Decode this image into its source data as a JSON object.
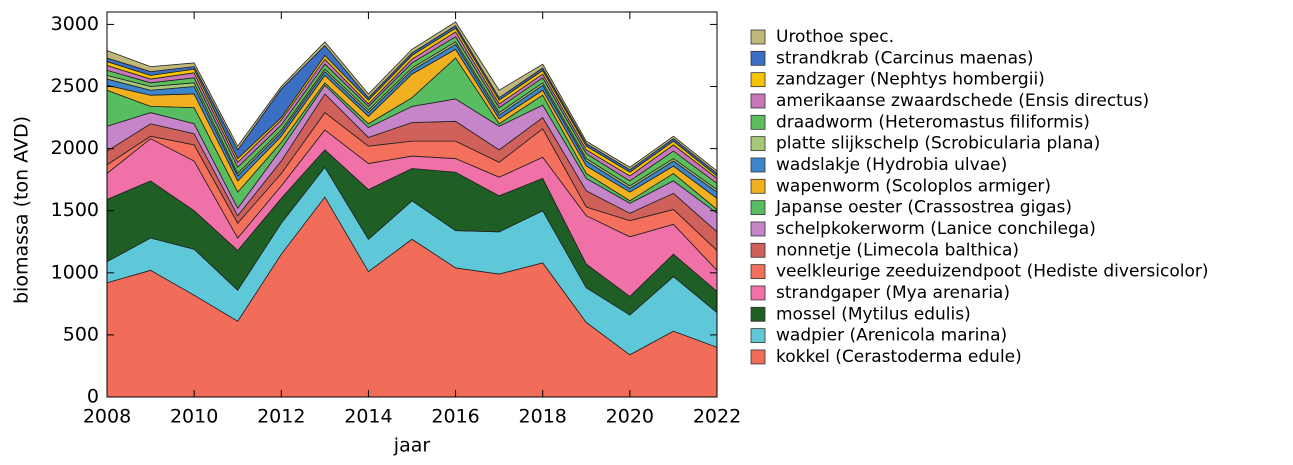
{
  "chart_data": {
    "type": "area",
    "stacked": true,
    "x_label": "jaar",
    "y_label": "biomassa (ton AVD)",
    "x": [
      2008,
      2009,
      2010,
      2011,
      2012,
      2013,
      2014,
      2015,
      2016,
      2017,
      2018,
      2019,
      2020,
      2021,
      2022
    ],
    "xlim": [
      2008,
      2022
    ],
    "xticks": [
      2008,
      2010,
      2012,
      2014,
      2016,
      2018,
      2020,
      2022
    ],
    "ylim": [
      0,
      3100
    ],
    "yticks": [
      0,
      500,
      1000,
      1500,
      2000,
      2500,
      3000
    ],
    "grid": false,
    "legend": "right",
    "series": [
      {
        "name": "kokkel (Cerastoderma edule)",
        "color": "#f26c5a",
        "values": [
          920,
          1020,
          820,
          610,
          1150,
          1610,
          1010,
          1270,
          1040,
          990,
          1080,
          600,
          340,
          530,
          400
        ]
      },
      {
        "name": "wadpier (Arenicola marina)",
        "color": "#5fc8d8",
        "values": [
          170,
          260,
          370,
          250,
          250,
          240,
          260,
          310,
          300,
          340,
          420,
          280,
          320,
          440,
          280
        ]
      },
      {
        "name": "mossel (Mytilus edulis)",
        "color": "#1f5e25",
        "values": [
          500,
          460,
          310,
          320,
          200,
          140,
          400,
          260,
          470,
          290,
          260,
          190,
          150,
          180,
          170
        ]
      },
      {
        "name": "strandgaper (Mya arenaria)",
        "color": "#f070a8",
        "values": [
          210,
          340,
          400,
          100,
          100,
          160,
          210,
          100,
          110,
          150,
          170,
          390,
          480,
          240,
          170
        ]
      },
      {
        "name": "veelkleurige zeeduizendpoot (Hediste diversicolor)",
        "color": "#f4705c",
        "values": [
          70,
          20,
          130,
          120,
          100,
          140,
          140,
          120,
          140,
          120,
          230,
          70,
          130,
          120,
          160
        ]
      },
      {
        "name": "nonnetje (Limecola balthica)",
        "color": "#d0605a",
        "values": [
          110,
          100,
          90,
          60,
          100,
          150,
          70,
          150,
          160,
          100,
          90,
          130,
          60,
          130,
          150
        ]
      },
      {
        "name": "schelpkokerworm (Lanice conchilega)",
        "color": "#c585c8",
        "values": [
          200,
          90,
          80,
          60,
          100,
          70,
          80,
          130,
          180,
          190,
          100,
          100,
          80,
          100,
          150
        ]
      },
      {
        "name": "Japanse oester (Crassostrea gigas)",
        "color": "#57bd60",
        "values": [
          290,
          50,
          130,
          130,
          50,
          20,
          30,
          70,
          330,
          20,
          80,
          40,
          20,
          60,
          30
        ]
      },
      {
        "name": "wapenworm (Scoloplos armiger)",
        "color": "#f0b020",
        "values": [
          40,
          90,
          110,
          90,
          50,
          60,
          60,
          190,
          70,
          40,
          40,
          60,
          70,
          60,
          90
        ]
      },
      {
        "name": "wadslakje (Hydrobia ulvae)",
        "color": "#3d86cc",
        "values": [
          50,
          40,
          60,
          40,
          30,
          30,
          30,
          30,
          40,
          30,
          40,
          40,
          30,
          40,
          50
        ]
      },
      {
        "name": "platte slijkschelp (Scrobicularia plana)",
        "color": "#a7c77a",
        "values": [
          30,
          30,
          30,
          20,
          20,
          20,
          20,
          20,
          20,
          20,
          20,
          20,
          20,
          20,
          20
        ]
      },
      {
        "name": "draadworm (Heteromastus filiformis)",
        "color": "#5cbf5c",
        "values": [
          40,
          30,
          40,
          50,
          40,
          40,
          30,
          40,
          40,
          40,
          40,
          40,
          40,
          60,
          50
        ]
      },
      {
        "name": "amerikaanse zwaardschede (Ensis directus)",
        "color": "#c977bb",
        "values": [
          40,
          30,
          40,
          40,
          40,
          40,
          20,
          30,
          40,
          30,
          30,
          30,
          40,
          50,
          40
        ]
      },
      {
        "name": "zandzager (Nephtys hombergii)",
        "color": "#f5c400",
        "values": [
          30,
          30,
          30,
          30,
          20,
          30,
          30,
          30,
          30,
          30,
          30,
          30,
          30,
          30,
          20
        ]
      },
      {
        "name": "strandkrab (Carcinus maenas)",
        "color": "#3a6fc4",
        "values": [
          30,
          30,
          20,
          70,
          230,
          80,
          20,
          20,
          20,
          20,
          20,
          20,
          20,
          20,
          20
        ]
      },
      {
        "name": "Urothoe spec.",
        "color": "#c0b87a",
        "values": [
          60,
          40,
          30,
          30,
          20,
          30,
          30,
          30,
          30,
          60,
          30,
          20,
          20,
          20,
          20
        ]
      }
    ]
  }
}
